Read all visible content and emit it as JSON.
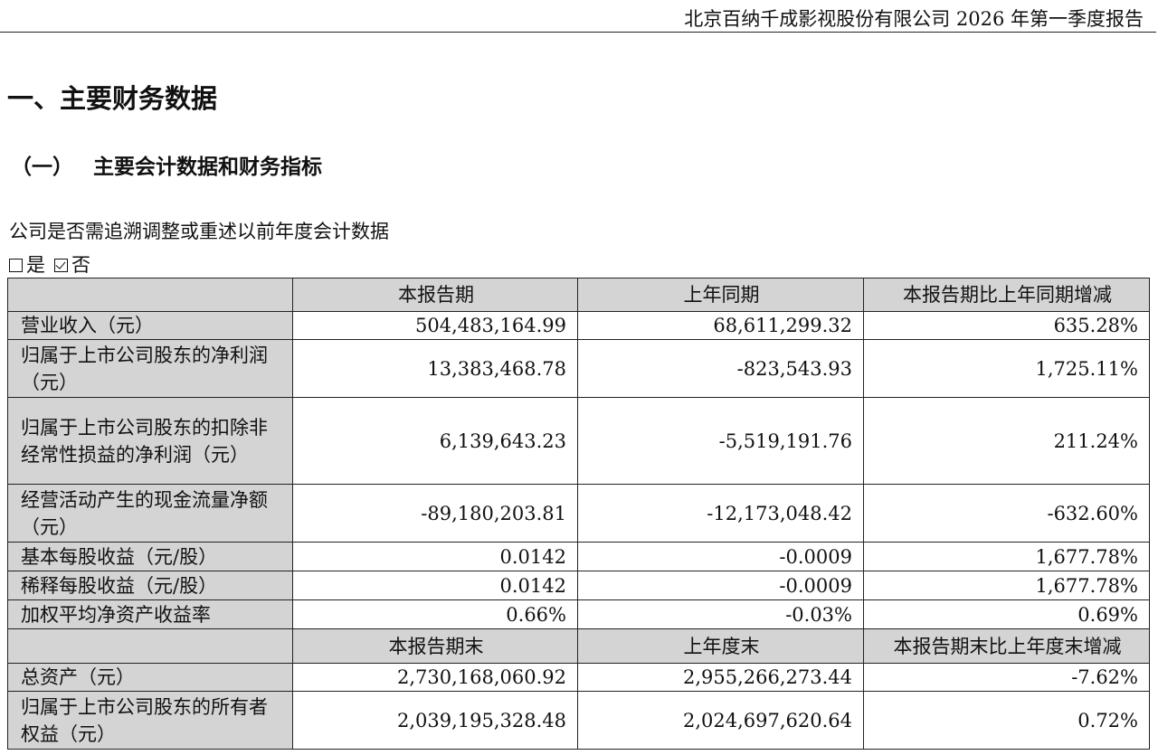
{
  "header": {
    "title": "北京百纳千成影视股份有限公司 2026 年第一季度报告"
  },
  "section_title": "一、主要财务数据",
  "subsection": {
    "number": "（一）",
    "title": "主要会计数据和财务指标"
  },
  "restatement": {
    "question": "公司是否需追溯调整或重述以前年度会计数据",
    "options": [
      {
        "label": "是",
        "checked": false
      },
      {
        "label": "否",
        "checked": true
      }
    ]
  },
  "table1": {
    "headers": [
      "本报告期",
      "上年同期",
      "本报告期比上年同期增减"
    ],
    "rows": [
      {
        "label": "营业收入（元）",
        "current": "504,483,164.99",
        "prior": "68,611,299.32",
        "change": "635.28%"
      },
      {
        "label": "归属于上市公司股东的净利润（元）",
        "current": "13,383,468.78",
        "prior": "-823,543.93",
        "change": "1,725.11%"
      },
      {
        "label": "归属于上市公司股东的扣除非经常性损益的净利润（元）",
        "current": "6,139,643.23",
        "prior": "-5,519,191.76",
        "change": "211.24%"
      },
      {
        "label": "经营活动产生的现金流量净额（元）",
        "current": "-89,180,203.81",
        "prior": "-12,173,048.42",
        "change": "-632.60%"
      },
      {
        "label": "基本每股收益（元/股）",
        "current": "0.0142",
        "prior": "-0.0009",
        "change": "1,677.78%"
      },
      {
        "label": "稀释每股收益（元/股）",
        "current": "0.0142",
        "prior": "-0.0009",
        "change": "1,677.78%"
      },
      {
        "label": "加权平均净资产收益率",
        "current": "0.66%",
        "prior": "-0.03%",
        "change": "0.69%"
      }
    ]
  },
  "table2": {
    "headers": [
      "本报告期末",
      "上年度末",
      "本报告期末比上年度末增减"
    ],
    "rows": [
      {
        "label": "总资产（元）",
        "current": "2,730,168,060.92",
        "prior": "2,955,266,273.44",
        "change": "-7.62%"
      },
      {
        "label": "归属于上市公司股东的所有者权益（元）",
        "current": "2,039,195,328.48",
        "prior": "2,024,697,620.64",
        "change": "0.72%"
      }
    ]
  }
}
